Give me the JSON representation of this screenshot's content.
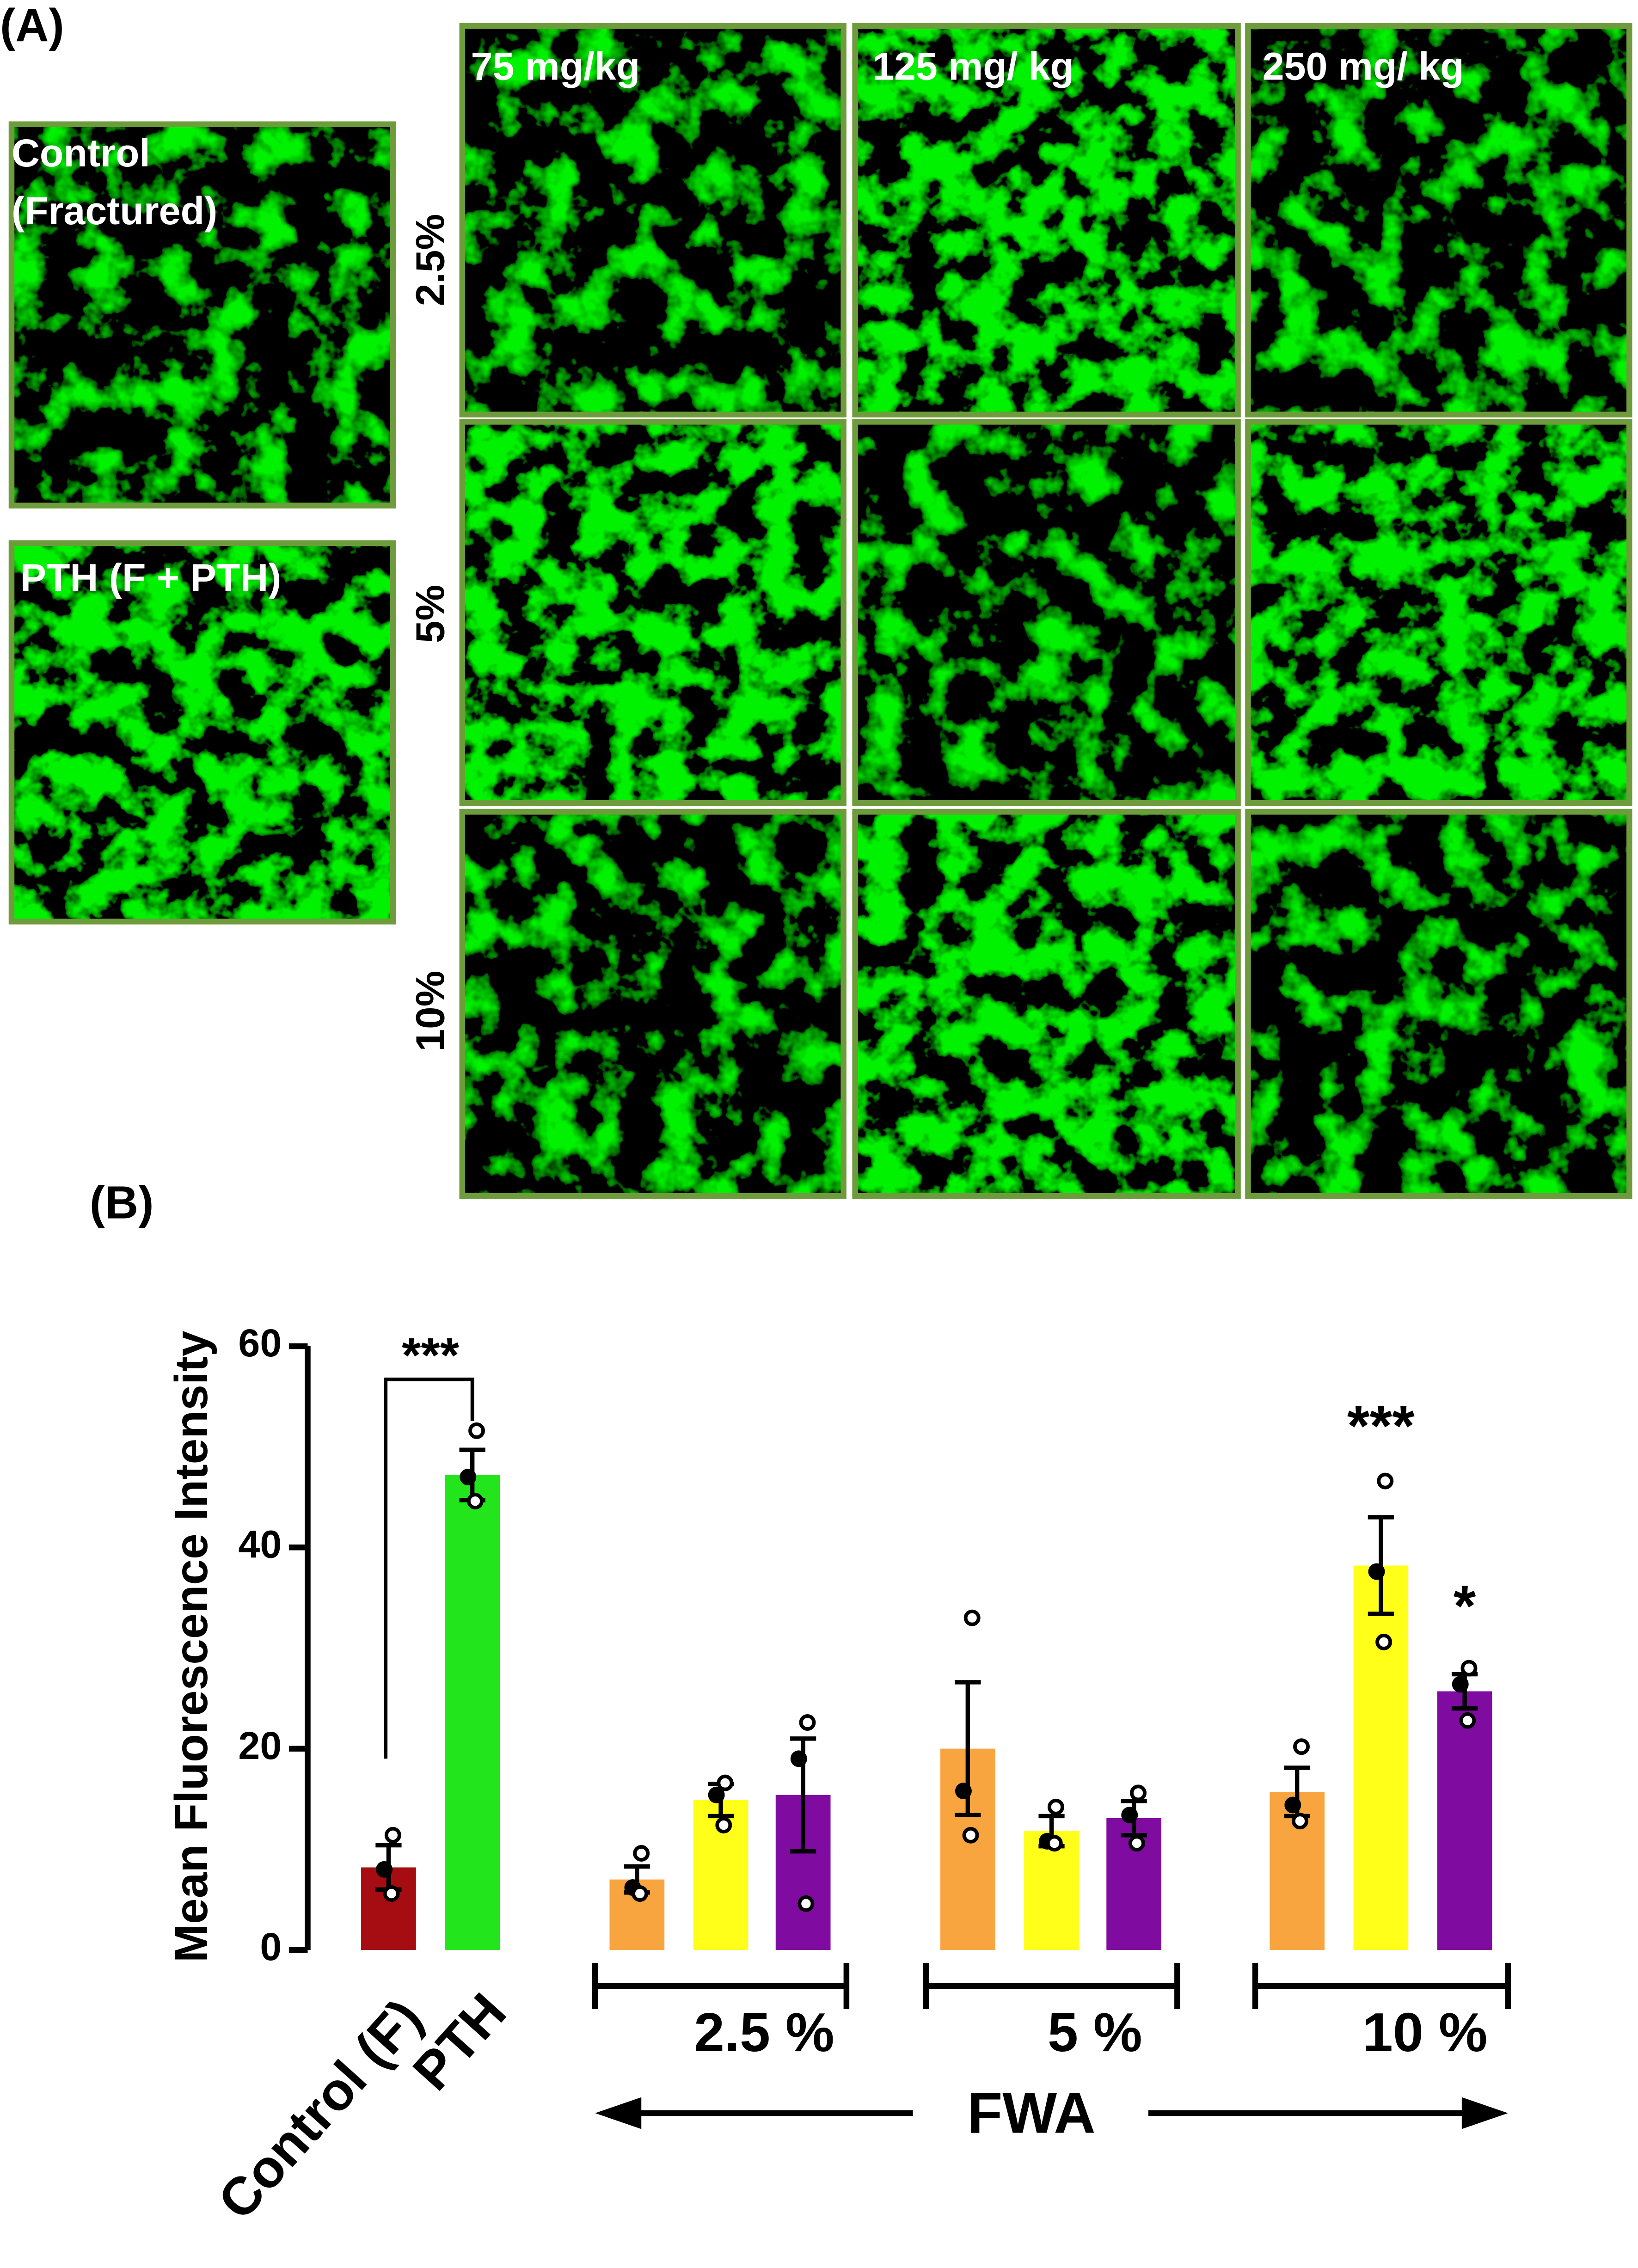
{
  "panel_a": {
    "label": "(A)",
    "control_label": [
      "Control",
      "(Fractured)"
    ],
    "pth_label": "PTH (F + PTH)",
    "column_labels": [
      "75 mg/kg",
      "125 mg/ kg",
      "250 mg/ kg"
    ],
    "row_labels": [
      "2.5%",
      "5%",
      "10%"
    ]
  },
  "chart_data": {
    "type": "bar",
    "panel_label": "(B)",
    "y_label": "Mean Fluorescence Intensity",
    "categories": [
      "Control (F)",
      "PTH",
      null,
      null,
      null,
      null,
      null,
      null,
      null,
      null,
      null
    ],
    "values": [
      8.2,
      47.2,
      7.0,
      14.9,
      15.4,
      20.0,
      11.8,
      13.1,
      15.7,
      38.2,
      25.7
    ],
    "errors": [
      2.2,
      2.5,
      1.3,
      1.6,
      5.6,
      6.6,
      1.5,
      1.7,
      2.4,
      4.8,
      1.7
    ],
    "points": [
      [
        11.4,
        8.0,
        5.6
      ],
      [
        51.6,
        47.0,
        44.6
      ],
      [
        9.6,
        6.2,
        5.6
      ],
      [
        16.6,
        15.4,
        12.4
      ],
      [
        22.6,
        19.0,
        4.6
      ],
      [
        33.0,
        15.8,
        11.4
      ],
      [
        14.2,
        10.8,
        10.6
      ],
      [
        15.6,
        13.4,
        10.6
      ],
      [
        20.2,
        14.4,
        12.8
      ],
      [
        46.6,
        37.6,
        30.6
      ],
      [
        28.0,
        26.4,
        22.8
      ]
    ],
    "colors": [
      "#a50d12",
      "#22e61b",
      "#f8a540",
      "#ffff1a",
      "#7f0ba0",
      "#f8a540",
      "#ffff1a",
      "#7f0ba0",
      "#f8a540",
      "#ffff1a",
      "#7f0ba0"
    ],
    "significance": [
      null,
      "***",
      null,
      null,
      null,
      null,
      null,
      null,
      null,
      "***",
      "*"
    ],
    "group_labels": [
      "2.5 %",
      "5 %",
      "10 %"
    ],
    "group_title": "FWA",
    "ylim": [
      0,
      60
    ],
    "yticks": [
      0,
      20,
      40,
      60
    ]
  }
}
